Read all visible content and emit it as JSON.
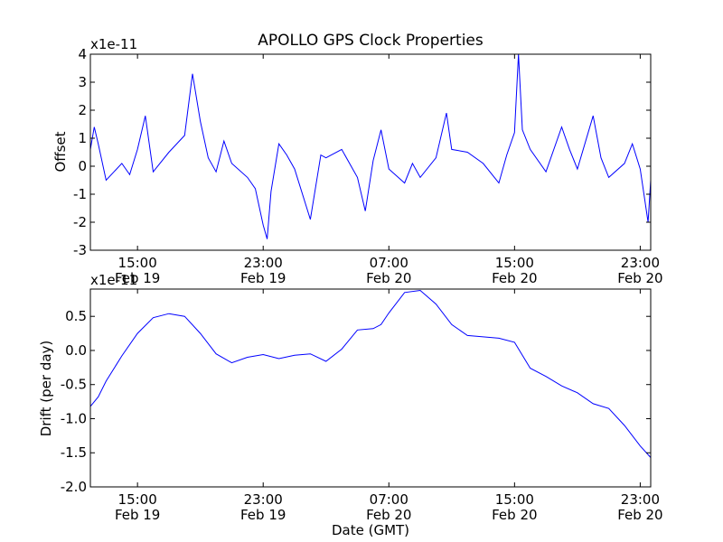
{
  "figure": {
    "title": "APOLLO GPS Clock Properties",
    "xlabel": "Date (GMT)"
  },
  "chart_data": [
    {
      "type": "line",
      "ylabel": "Offset",
      "y_multiplier": "x1e-11",
      "xlim": [
        "2013-02-19T12:00",
        "2013-02-20T23:40"
      ],
      "ylim": [
        -3,
        4
      ],
      "grid": false,
      "series": [
        {
          "color": "#0000ff",
          "x": [
            "2013-02-19T12:00",
            "2013-02-19T12:15",
            "2013-02-19T12:30",
            "2013-02-19T13:00",
            "2013-02-19T13:30",
            "2013-02-19T14:00",
            "2013-02-19T14:30",
            "2013-02-19T15:00",
            "2013-02-19T15:30",
            "2013-02-19T16:00",
            "2013-02-19T17:00",
            "2013-02-19T18:00",
            "2013-02-19T18:30",
            "2013-02-19T19:00",
            "2013-02-19T19:30",
            "2013-02-19T20:00",
            "2013-02-19T20:30",
            "2013-02-19T21:00",
            "2013-02-19T22:00",
            "2013-02-19T22:30",
            "2013-02-19T23:00",
            "2013-02-19T23:15",
            "2013-02-19T23:30",
            "2013-02-20T00:00",
            "2013-02-20T00:30",
            "2013-02-20T01:00",
            "2013-02-20T02:00",
            "2013-02-20T02:40",
            "2013-02-20T03:00",
            "2013-02-20T04:00",
            "2013-02-20T05:00",
            "2013-02-20T05:30",
            "2013-02-20T06:00",
            "2013-02-20T06:30",
            "2013-02-20T07:00",
            "2013-02-20T08:00",
            "2013-02-20T08:30",
            "2013-02-20T09:00",
            "2013-02-20T10:00",
            "2013-02-20T10:40",
            "2013-02-20T11:00",
            "2013-02-20T12:00",
            "2013-02-20T13:00",
            "2013-02-20T14:00",
            "2013-02-20T14:30",
            "2013-02-20T15:00",
            "2013-02-20T15:15",
            "2013-02-20T15:30",
            "2013-02-20T16:00",
            "2013-02-20T17:00",
            "2013-02-20T18:00",
            "2013-02-20T18:30",
            "2013-02-20T19:00",
            "2013-02-20T20:00",
            "2013-02-20T20:30",
            "2013-02-20T21:00",
            "2013-02-20T22:00",
            "2013-02-20T22:30",
            "2013-02-20T23:00",
            "2013-02-20T23:30",
            "2013-02-20T23:40"
          ],
          "y": [
            0.6,
            1.4,
            0.8,
            -0.5,
            -0.2,
            0.1,
            -0.3,
            0.6,
            1.8,
            -0.2,
            0.5,
            1.1,
            3.3,
            1.6,
            0.3,
            -0.2,
            0.9,
            0.1,
            -0.4,
            -0.8,
            -2.1,
            -2.6,
            -0.9,
            0.8,
            0.4,
            -0.1,
            -1.9,
            0.4,
            0.3,
            0.6,
            -0.4,
            -1.6,
            0.2,
            1.3,
            -0.1,
            -0.6,
            0.1,
            -0.4,
            0.3,
            1.9,
            0.6,
            0.5,
            0.1,
            -0.6,
            0.4,
            1.2,
            4.0,
            1.3,
            0.6,
            -0.2,
            1.4,
            0.6,
            -0.1,
            1.8,
            0.3,
            -0.4,
            0.1,
            0.8,
            -0.1,
            -2.0,
            -0.5
          ]
        }
      ]
    },
    {
      "type": "line",
      "ylabel": "Drift (per day)",
      "y_multiplier": "x1e-11",
      "xlim": [
        "2013-02-19T12:00",
        "2013-02-20T23:40"
      ],
      "ylim": [
        -2.0,
        0.9
      ],
      "grid": false,
      "series": [
        {
          "color": "#0000ff",
          "x": [
            "2013-02-19T12:00",
            "2013-02-19T12:30",
            "2013-02-19T13:00",
            "2013-02-19T14:00",
            "2013-02-19T15:00",
            "2013-02-19T16:00",
            "2013-02-19T17:00",
            "2013-02-19T18:00",
            "2013-02-19T19:00",
            "2013-02-19T20:00",
            "2013-02-19T21:00",
            "2013-02-19T22:00",
            "2013-02-19T23:00",
            "2013-02-20T00:00",
            "2013-02-20T01:00",
            "2013-02-20T02:00",
            "2013-02-20T03:00",
            "2013-02-20T04:00",
            "2013-02-20T05:00",
            "2013-02-20T06:00",
            "2013-02-20T06:30",
            "2013-02-20T07:00",
            "2013-02-20T08:00",
            "2013-02-20T09:00",
            "2013-02-20T10:00",
            "2013-02-20T11:00",
            "2013-02-20T12:00",
            "2013-02-20T13:00",
            "2013-02-20T14:00",
            "2013-02-20T15:00",
            "2013-02-20T16:00",
            "2013-02-20T17:00",
            "2013-02-20T18:00",
            "2013-02-20T19:00",
            "2013-02-20T20:00",
            "2013-02-20T21:00",
            "2013-02-20T22:00",
            "2013-02-20T23:00",
            "2013-02-20T23:40"
          ],
          "y": [
            -0.82,
            -0.68,
            -0.45,
            -0.08,
            0.25,
            0.48,
            0.54,
            0.5,
            0.25,
            -0.05,
            -0.18,
            -0.1,
            -0.06,
            -0.12,
            -0.07,
            -0.05,
            -0.16,
            0.02,
            0.3,
            0.32,
            0.38,
            0.55,
            0.85,
            0.88,
            0.68,
            0.38,
            0.22,
            0.2,
            0.18,
            0.12,
            -0.26,
            -0.38,
            -0.52,
            -0.62,
            -0.78,
            -0.85,
            -1.1,
            -1.4,
            -1.57
          ]
        }
      ]
    }
  ],
  "x_ticks": [
    {
      "x": "2013-02-19T15:00",
      "time": "15:00",
      "date": "Feb 19"
    },
    {
      "x": "2013-02-19T23:00",
      "time": "23:00",
      "date": "Feb 19"
    },
    {
      "x": "2013-02-20T07:00",
      "time": "07:00",
      "date": "Feb 20"
    },
    {
      "x": "2013-02-20T15:00",
      "time": "15:00",
      "date": "Feb 20"
    },
    {
      "x": "2013-02-20T23:00",
      "time": "23:00",
      "date": "Feb 20"
    }
  ],
  "y_ticks_top": [
    "4",
    "3",
    "2",
    "1",
    "0",
    "-1",
    "-2",
    "-3"
  ],
  "y_ticks_bottom": [
    "0.5",
    "0.0",
    "-0.5",
    "-1.0",
    "-1.5",
    "-2.0"
  ]
}
